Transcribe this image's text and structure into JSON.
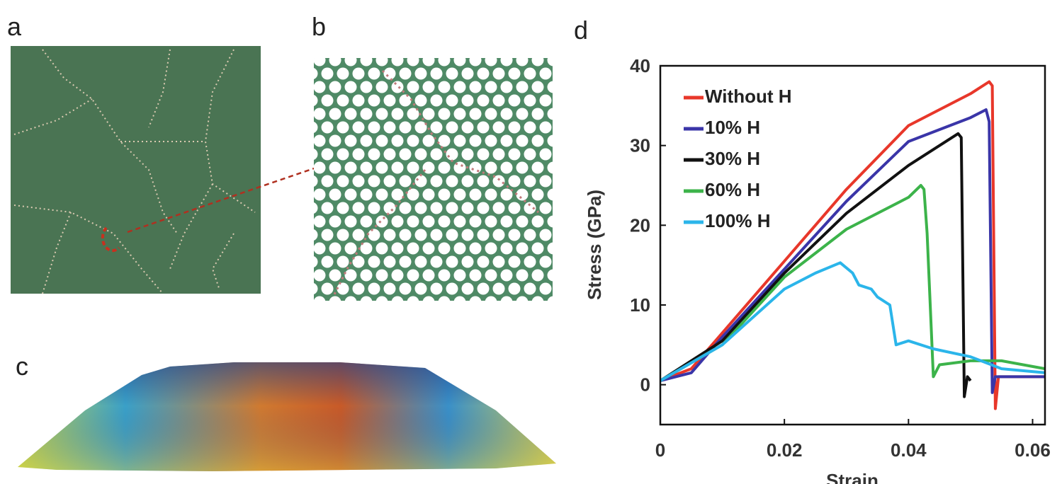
{
  "panel_labels": [
    "a",
    "b",
    "c",
    "d"
  ],
  "chart_data": {
    "type": "line",
    "xlabel": "Strain",
    "ylabel": "Stress (GPa)",
    "xlim": [
      0,
      0.062
    ],
    "ylim": [
      -5,
      40
    ],
    "xticks": [
      0,
      0.02,
      0.04,
      0.06
    ],
    "yticks": [
      0,
      10,
      20,
      30,
      40
    ],
    "grid": false,
    "legend": "upper left",
    "series": [
      {
        "name": "Without H",
        "color": "#e8372a",
        "x": [
          0,
          0.005,
          0.01,
          0.02,
          0.03,
          0.04,
          0.05,
          0.053,
          0.0535,
          0.054,
          0.0545,
          0.062
        ],
        "values": [
          0.5,
          2,
          6.5,
          15.5,
          24.5,
          32.5,
          36.5,
          38,
          37.5,
          -3,
          1,
          1
        ]
      },
      {
        "name": "10% H",
        "color": "#3a35a8",
        "x": [
          0,
          0.005,
          0.01,
          0.02,
          0.03,
          0.04,
          0.05,
          0.0525,
          0.053,
          0.0535,
          0.054,
          0.062
        ],
        "values": [
          0.5,
          1.5,
          6,
          14.5,
          23,
          30.5,
          33.5,
          34.5,
          33,
          -1,
          1,
          1
        ]
      },
      {
        "name": "30% H",
        "color": "#111111",
        "x": [
          0,
          0.01,
          0.02,
          0.03,
          0.04,
          0.048,
          0.0485,
          0.049,
          0.0495,
          0.05
        ],
        "values": [
          0.5,
          5.5,
          14,
          21.5,
          27.5,
          31.5,
          31,
          -1.5,
          1,
          0.5
        ]
      },
      {
        "name": "60% H",
        "color": "#3cb34a",
        "x": [
          0,
          0.01,
          0.02,
          0.03,
          0.04,
          0.042,
          0.0425,
          0.043,
          0.0435,
          0.044,
          0.045,
          0.05,
          0.055,
          0.062
        ],
        "values": [
          0.5,
          5,
          13.5,
          19.5,
          23.5,
          25,
          24.5,
          19,
          10,
          1,
          2.5,
          3,
          3,
          2
        ]
      },
      {
        "name": "100% H",
        "color": "#2bb5ea",
        "x": [
          0,
          0.01,
          0.02,
          0.025,
          0.029,
          0.031,
          0.032,
          0.034,
          0.035,
          0.037,
          0.038,
          0.04,
          0.044,
          0.05,
          0.055,
          0.062
        ],
        "values": [
          0.5,
          5,
          12,
          14,
          15.3,
          14,
          12.5,
          12,
          11,
          10,
          5,
          5.5,
          4.5,
          3.5,
          2,
          1.5
        ]
      }
    ]
  }
}
